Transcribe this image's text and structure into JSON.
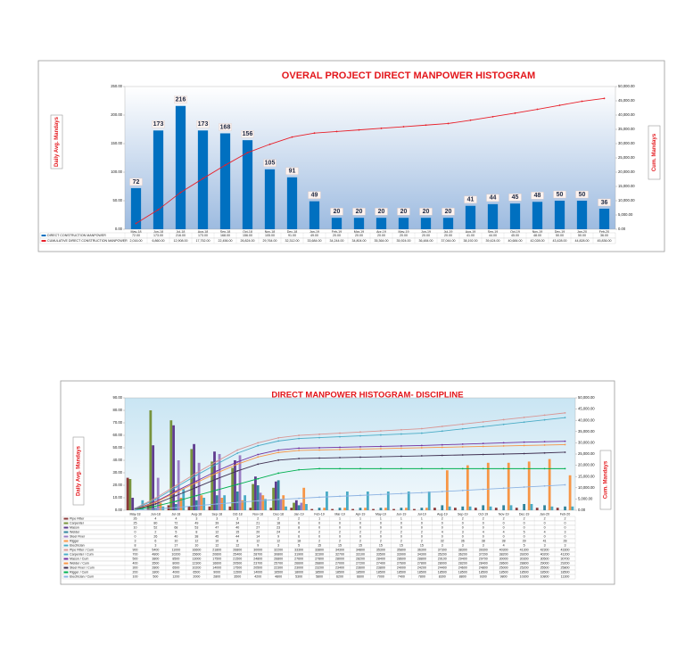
{
  "chart_data": [
    {
      "type": "combo",
      "title": "OVERAL PROJECT DIRECT MANPOWER HISTOGRAM",
      "y_label": "Daily Avg. Mandays",
      "y2_label": "Cum. Mandays",
      "categories": [
        "May-18",
        "Jun-18",
        "Jul-18",
        "Aug-18",
        "Sep-18",
        "Oct-18",
        "Nov-18",
        "Dec-18",
        "Jan-19",
        "Feb-19",
        "Mar-19",
        "Apr-19",
        "May-19",
        "Jun-19",
        "Jul-19",
        "Aug-19",
        "Sep-19",
        "Oct-19",
        "Nov-19",
        "Dec-19",
        "Jan-20",
        "Feb-20"
      ],
      "series": [
        {
          "name": "DIRECT CONSTRUCTION MANPOWER",
          "type": "bar",
          "color": "#0070c0",
          "values": [
            72,
            173,
            216,
            173,
            168,
            156,
            105,
            91,
            49,
            20,
            20,
            20,
            20,
            20,
            20,
            41,
            44,
            45,
            48,
            50,
            50,
            36
          ],
          "value_labels": [
            "72.00",
            "173.00",
            "216.00",
            "173.00",
            "168.00",
            "156.00",
            "105.00",
            "91.00",
            "49.00",
            "20.00",
            "20.00",
            "20.00",
            "20.00",
            "20.00",
            "20.00",
            "41.00",
            "44.00",
            "45.00",
            "48.00",
            "50.00",
            "50.00",
            "36.00"
          ]
        },
        {
          "name": "CUMULATIVE DIRECT CONSTRUCTION MANPOWER",
          "type": "line",
          "axis": "y2",
          "color": "#e8202a",
          "values": [
            2016,
            6860,
            12908,
            17752,
            22456,
            26824,
            29764,
            32312,
            33684,
            34244,
            34804,
            35364,
            35924,
            36484,
            37044,
            38192,
            39424,
            40684,
            42028,
            43428,
            44828,
            45836
          ],
          "value_labels": [
            "2,016.00",
            "6,860.00",
            "12,908.00",
            "17,752.00",
            "22,456.00",
            "26,824.00",
            "29,764.00",
            "32,312.00",
            "33,684.00",
            "34,244.00",
            "34,804.00",
            "35,364.00",
            "35,924.00",
            "36,484.00",
            "37,044.00",
            "38,192.00",
            "39,424.00",
            "40,684.00",
            "42,028.00",
            "43,428.00",
            "44,828.00",
            "45,836.00"
          ]
        }
      ],
      "ylim": [
        0,
        250
      ],
      "yticks": [
        {
          "value": 0,
          "label": "0.00"
        },
        {
          "value": 50,
          "label": "50.00"
        },
        {
          "value": 100,
          "label": "100.00"
        },
        {
          "value": 150,
          "label": "150.00"
        },
        {
          "value": 200,
          "label": "200.00"
        },
        {
          "value": 250,
          "label": "250.00"
        }
      ],
      "y2lim": [
        0,
        50000
      ],
      "y2ticks": [
        {
          "value": 0,
          "label": "0.00"
        },
        {
          "value": 5000,
          "label": "5,000.00"
        },
        {
          "value": 10000,
          "label": "10,000.00"
        },
        {
          "value": 15000,
          "label": "15,000.00"
        },
        {
          "value": 20000,
          "label": "20,000.00"
        },
        {
          "value": 25000,
          "label": "25,000.00"
        },
        {
          "value": 30000,
          "label": "30,000.00"
        },
        {
          "value": 35000,
          "label": "35,000.00"
        },
        {
          "value": 40000,
          "label": "40,000.00"
        },
        {
          "value": 45000,
          "label": "45,000.00"
        },
        {
          "value": 50000,
          "label": "50,000.00"
        }
      ],
      "bar_labels": true
    },
    {
      "type": "combo",
      "title": "DIRECT MANPOWER HISTOGRAM- DISCIPLINE",
      "y_label": "Daily Avg. Mandays",
      "y2_label": "Cum. Mandays",
      "categories": [
        "May-18",
        "Jun-18",
        "Jul-18",
        "Aug-18",
        "Sep-18",
        "Oct-18",
        "Nov-18",
        "Dec-18",
        "Jan-19",
        "Feb-19",
        "Mar-19",
        "Apr-19",
        "May-19",
        "Jun-19",
        "Jul-19",
        "Aug-19",
        "Sep-19",
        "Oct-19",
        "Nov-19",
        "Dec-19",
        "Jan-20",
        "Feb-20"
      ],
      "series": [
        {
          "name": "Pipe Fitter",
          "type": "bar",
          "color": "#8b3a3a",
          "values": [
            26,
            4,
            4,
            3,
            3,
            3,
            2,
            2,
            2,
            1,
            1,
            1,
            1,
            1,
            1,
            2,
            2,
            2,
            2,
            2,
            2,
            2
          ]
        },
        {
          "name": "Carpenter",
          "type": "bar",
          "color": "#77933c",
          "values": [
            25,
            80,
            72,
            49,
            39,
            34,
            21,
            18,
            6,
            0,
            0,
            0,
            0,
            0,
            0,
            0,
            0,
            0,
            0,
            0,
            0,
            0
          ]
        },
        {
          "name": "Mason",
          "type": "bar",
          "color": "#5f3c8f",
          "values": [
            10,
            52,
            68,
            53,
            47,
            40,
            27,
            23,
            8,
            0,
            0,
            0,
            0,
            0,
            0,
            0,
            0,
            0,
            0,
            0,
            0,
            0
          ]
        },
        {
          "name": "Welder",
          "type": "bar",
          "color": "#31859c",
          "values": [
            0,
            2,
            5,
            8,
            12,
            15,
            20,
            24,
            4,
            2,
            2,
            2,
            2,
            2,
            2,
            4,
            3,
            4,
            4,
            5,
            4,
            3
          ]
        },
        {
          "name": "Steel Fixer",
          "type": "bar",
          "color": "#9b7fc4",
          "values": [
            0,
            26,
            40,
            38,
            45,
            44,
            14,
            9,
            6,
            0,
            0,
            0,
            0,
            0,
            0,
            0,
            0,
            0,
            0,
            0,
            0,
            0
          ]
        },
        {
          "name": "Rigger",
          "type": "bar",
          "color": "#f79646",
          "values": [
            3,
            6,
            10,
            12,
            10,
            8,
            12,
            12,
            18,
            2,
            2,
            2,
            2,
            2,
            2,
            32,
            36,
            38,
            38,
            39,
            41,
            28
          ]
        },
        {
          "name": "Electrician",
          "type": "bar",
          "color": "#4bacc6",
          "values": [
            8,
            3,
            17,
            10,
            12,
            12,
            9,
            3,
            5,
            15,
            15,
            15,
            15,
            15,
            15,
            3,
            3,
            3,
            4,
            5,
            3,
            3
          ]
        },
        {
          "name": "Pipe Fitter / Cum",
          "type": "line",
          "axis": "y2",
          "color": "#d99694",
          "values": [
            900,
            5400,
            11000,
            16600,
            21800,
            26800,
            30000,
            32200,
            33300,
            33800,
            34300,
            34800,
            35300,
            35800,
            36300,
            37300,
            38300,
            39300,
            40300,
            41300,
            42300,
            43300
          ]
        },
        {
          "name": "Carpenter / Cum",
          "type": "line",
          "axis": "y2",
          "color": "#4bacc6",
          "values": [
            700,
            4800,
            10200,
            15600,
            20600,
            25400,
            28700,
            30800,
            31900,
            32300,
            32700,
            33100,
            33500,
            33900,
            34300,
            35200,
            36200,
            37200,
            38200,
            39200,
            40200,
            41200
          ]
        },
        {
          "name": "Mason / Cum",
          "type": "line",
          "axis": "y2",
          "color": "#7030a0",
          "values": [
            500,
            3800,
            8500,
            13000,
            17500,
            21500,
            24800,
            26800,
            27600,
            27800,
            28000,
            28200,
            28400,
            28600,
            28800,
            29100,
            29400,
            29700,
            30000,
            30300,
            30500,
            30700
          ]
        },
        {
          "name": "Welder / Cum",
          "type": "line",
          "axis": "y2",
          "color": "#f79646",
          "values": [
            400,
            3500,
            8000,
            12300,
            16600,
            20500,
            23700,
            25700,
            26600,
            26800,
            27000,
            27200,
            27400,
            27600,
            27800,
            28000,
            28200,
            28400,
            28600,
            28800,
            29000,
            29200
          ]
        },
        {
          "name": "Steel Fixer / Cum",
          "type": "line",
          "axis": "y2",
          "color": "#403152",
          "values": [
            300,
            2800,
            6500,
            10200,
            14000,
            17500,
            20500,
            22300,
            23000,
            23200,
            23400,
            23600,
            23800,
            24000,
            24200,
            24400,
            24600,
            24800,
            25000,
            25200,
            25500,
            25800
          ]
        },
        {
          "name": "Rigger / Cum",
          "type": "line",
          "axis": "y2",
          "color": "#00b050",
          "values": [
            200,
            1800,
            4000,
            6500,
            9000,
            11500,
            14000,
            16500,
            18000,
            18500,
            18500,
            18500,
            18500,
            18500,
            18500,
            18500,
            18500,
            18500,
            18500,
            18500,
            18500,
            18500
          ]
        },
        {
          "name": "Electrician / Cum",
          "type": "line",
          "axis": "y2",
          "color": "#8db3e2",
          "values": [
            100,
            500,
            1200,
            2000,
            2800,
            3500,
            4200,
            4800,
            5300,
            5800,
            6200,
            6600,
            7000,
            7400,
            7800,
            8300,
            8800,
            9300,
            9800,
            10300,
            10800,
            11300
          ]
        }
      ],
      "ylim": [
        0,
        90
      ],
      "yticks": [
        {
          "value": 0,
          "label": "0.00"
        },
        {
          "value": 10,
          "label": "10.00"
        },
        {
          "value": 20,
          "label": "20.00"
        },
        {
          "value": 30,
          "label": "30.00"
        },
        {
          "value": 40,
          "label": "40.00"
        },
        {
          "value": 50,
          "label": "50.00"
        },
        {
          "value": 60,
          "label": "60.00"
        },
        {
          "value": 70,
          "label": "70.00"
        },
        {
          "value": 80,
          "label": "80.00"
        },
        {
          "value": 90,
          "label": "90.00"
        }
      ],
      "y2lim": [
        0,
        50000
      ],
      "y2ticks": [
        {
          "value": 0,
          "label": "0.00"
        },
        {
          "value": 5000,
          "label": "5,000.00"
        },
        {
          "value": 10000,
          "label": "10,000.00"
        },
        {
          "value": 15000,
          "label": "15,000.00"
        },
        {
          "value": 20000,
          "label": "20,000.00"
        },
        {
          "value": 25000,
          "label": "25,000.00"
        },
        {
          "value": 30000,
          "label": "30,000.00"
        },
        {
          "value": 35000,
          "label": "35,000.00"
        },
        {
          "value": 40000,
          "label": "40,000.00"
        },
        {
          "value": 45000,
          "label": "45,000.00"
        },
        {
          "value": 50000,
          "label": "50,000.00"
        }
      ],
      "bar_labels": false
    }
  ]
}
